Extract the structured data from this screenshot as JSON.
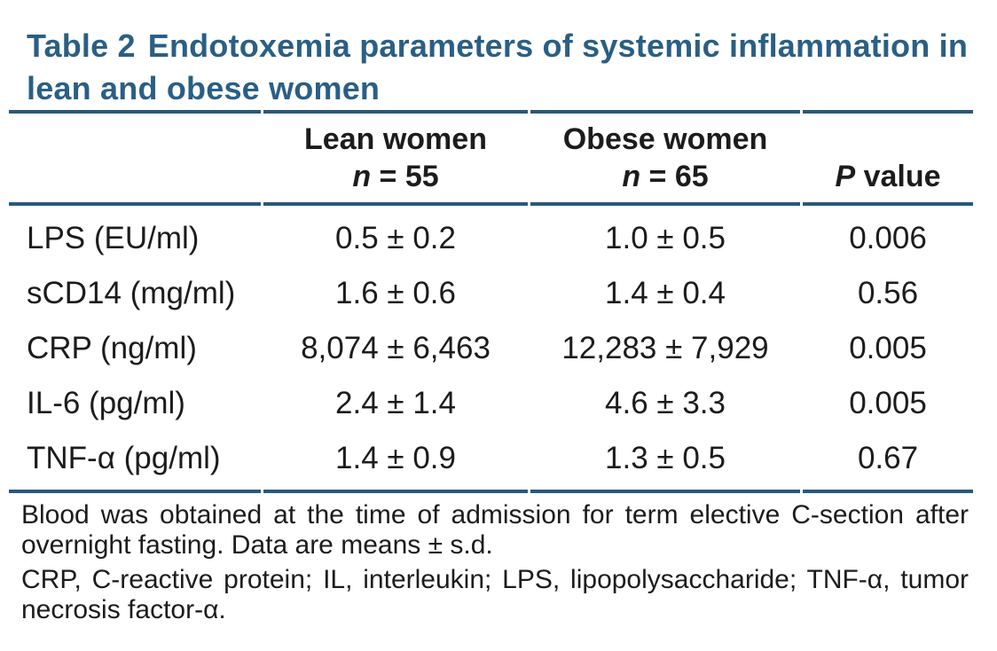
{
  "title": {
    "label": "Table 2",
    "caption": "Endotoxemia parameters of systemic inflammation in lean and obese women"
  },
  "colors": {
    "title_blue": "#2a5f85",
    "rule_blue": "#27597b",
    "text_black": "#1c1c1c",
    "background": "#ffffff"
  },
  "header": {
    "lean": {
      "group": "Lean women",
      "n_symbol": "n",
      "n_suffix": " = 55"
    },
    "obese": {
      "group": "Obese women",
      "n_symbol": "n",
      "n_suffix": " = 65"
    },
    "pvalue": {
      "symbol": "P",
      "suffix": " value"
    }
  },
  "chart_data": {
    "type": "table",
    "title": "Table 2 Endotoxemia parameters of systemic inflammation in lean and obese women",
    "columns": [
      "",
      "Lean women n = 55",
      "Obese women n = 65",
      "P value"
    ],
    "rows": [
      [
        "LPS (EU/ml)",
        "0.5 ± 0.2",
        "1.0 ± 0.5",
        "0.006"
      ],
      [
        "sCD14 (mg/ml)",
        "1.6 ± 0.6",
        "1.4 ± 0.4",
        "0.56"
      ],
      [
        "CRP (ng/ml)",
        "8,074 ± 6,463",
        "12,283 ± 7,929",
        "0.005"
      ],
      [
        "IL-6 (pg/ml)",
        "2.4 ± 1.4",
        "4.6 ± 3.3",
        "0.005"
      ],
      [
        "TNF-α (pg/ml)",
        "1.4 ± 0.9",
        "1.3 ± 0.5",
        "0.67"
      ]
    ]
  },
  "rows": [
    {
      "label": "LPS (EU/ml)",
      "lean": "0.5 ± 0.2",
      "obese": "1.0 ± 0.5",
      "p": "0.006"
    },
    {
      "label": "sCD14 (mg/ml)",
      "lean": "1.6 ± 0.6",
      "obese": "1.4 ± 0.4",
      "p": "0.56"
    },
    {
      "label": "CRP (ng/ml)",
      "lean": "8,074 ± 6,463",
      "obese": "12,283 ± 7,929",
      "p": "0.005"
    },
    {
      "label": "IL-6 (pg/ml)",
      "lean": "2.4 ± 1.4",
      "obese": "4.6 ± 3.3",
      "p": "0.005"
    },
    {
      "label": "TNF-α (pg/ml)",
      "lean": "1.4 ± 0.9",
      "obese": "1.3 ± 0.5",
      "p": "0.67"
    }
  ],
  "footnotes": {
    "methods": "Blood was obtained at the time of admission for term elective C-section after overnight fasting. Data are means ± s.d.",
    "abbreviations": "CRP, C-reactive protein; IL, interleukin; LPS, lipopolysaccharide; TNF-α, tumor necrosis factor-α."
  }
}
